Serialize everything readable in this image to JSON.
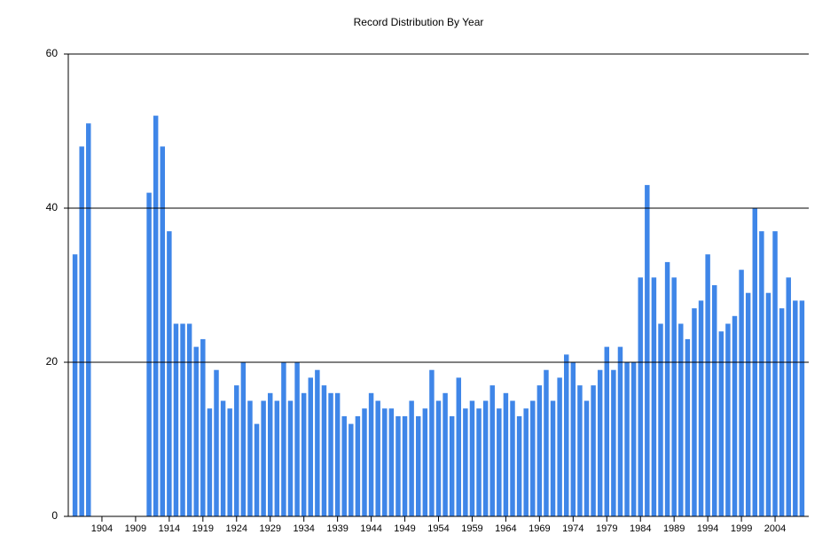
{
  "chart_data": {
    "type": "bar",
    "title": "Record Distribution By Year",
    "x": [
      1900,
      1901,
      1902,
      1903,
      1904,
      1905,
      1906,
      1907,
      1908,
      1909,
      1910,
      1911,
      1912,
      1913,
      1914,
      1915,
      1916,
      1917,
      1918,
      1919,
      1920,
      1921,
      1922,
      1923,
      1924,
      1925,
      1926,
      1927,
      1928,
      1929,
      1930,
      1931,
      1932,
      1933,
      1934,
      1935,
      1936,
      1937,
      1938,
      1939,
      1940,
      1941,
      1942,
      1943,
      1944,
      1945,
      1946,
      1947,
      1948,
      1949,
      1950,
      1951,
      1952,
      1953,
      1954,
      1955,
      1956,
      1957,
      1958,
      1959,
      1960,
      1961,
      1962,
      1963,
      1964,
      1965,
      1966,
      1967,
      1968,
      1969,
      1970,
      1971,
      1972,
      1973,
      1974,
      1975,
      1976,
      1977,
      1978,
      1979,
      1980,
      1981,
      1982,
      1983,
      1984,
      1985,
      1986,
      1987,
      1988,
      1989,
      1990,
      1991,
      1992,
      1993,
      1994,
      1995,
      1996,
      1997,
      1998,
      1999,
      2000,
      2001,
      2002,
      2003,
      2004,
      2005,
      2006,
      2007,
      2008
    ],
    "values": [
      34,
      48,
      51,
      0,
      0,
      0,
      0,
      0,
      0,
      0,
      0,
      42,
      52,
      48,
      37,
      25,
      25,
      25,
      22,
      23,
      14,
      19,
      15,
      14,
      17,
      20,
      15,
      12,
      15,
      16,
      15,
      20,
      15,
      20,
      16,
      18,
      19,
      17,
      16,
      16,
      13,
      12,
      13,
      14,
      16,
      15,
      14,
      14,
      13,
      13,
      15,
      13,
      14,
      19,
      15,
      16,
      13,
      18,
      14,
      15,
      14,
      15,
      17,
      14,
      16,
      15,
      13,
      14,
      15,
      17,
      19,
      15,
      18,
      21,
      20,
      17,
      15,
      17,
      19,
      22,
      19,
      22,
      20,
      20,
      31,
      43,
      31,
      25,
      33,
      31,
      25,
      23,
      27,
      28,
      34,
      30,
      24,
      25,
      26,
      32,
      29,
      40,
      37,
      29,
      37,
      27,
      31,
      28,
      28
    ],
    "color": "#3f86e8",
    "xlim": [
      1899,
      2009
    ],
    "xticks": [
      1904,
      1909,
      1914,
      1919,
      1924,
      1929,
      1934,
      1939,
      1944,
      1949,
      1954,
      1959,
      1964,
      1969,
      1974,
      1979,
      1984,
      1989,
      1994,
      1999,
      2004
    ],
    "ylim": [
      0,
      60
    ],
    "yticks": [
      0,
      20,
      40,
      60
    ],
    "grid": true
  }
}
